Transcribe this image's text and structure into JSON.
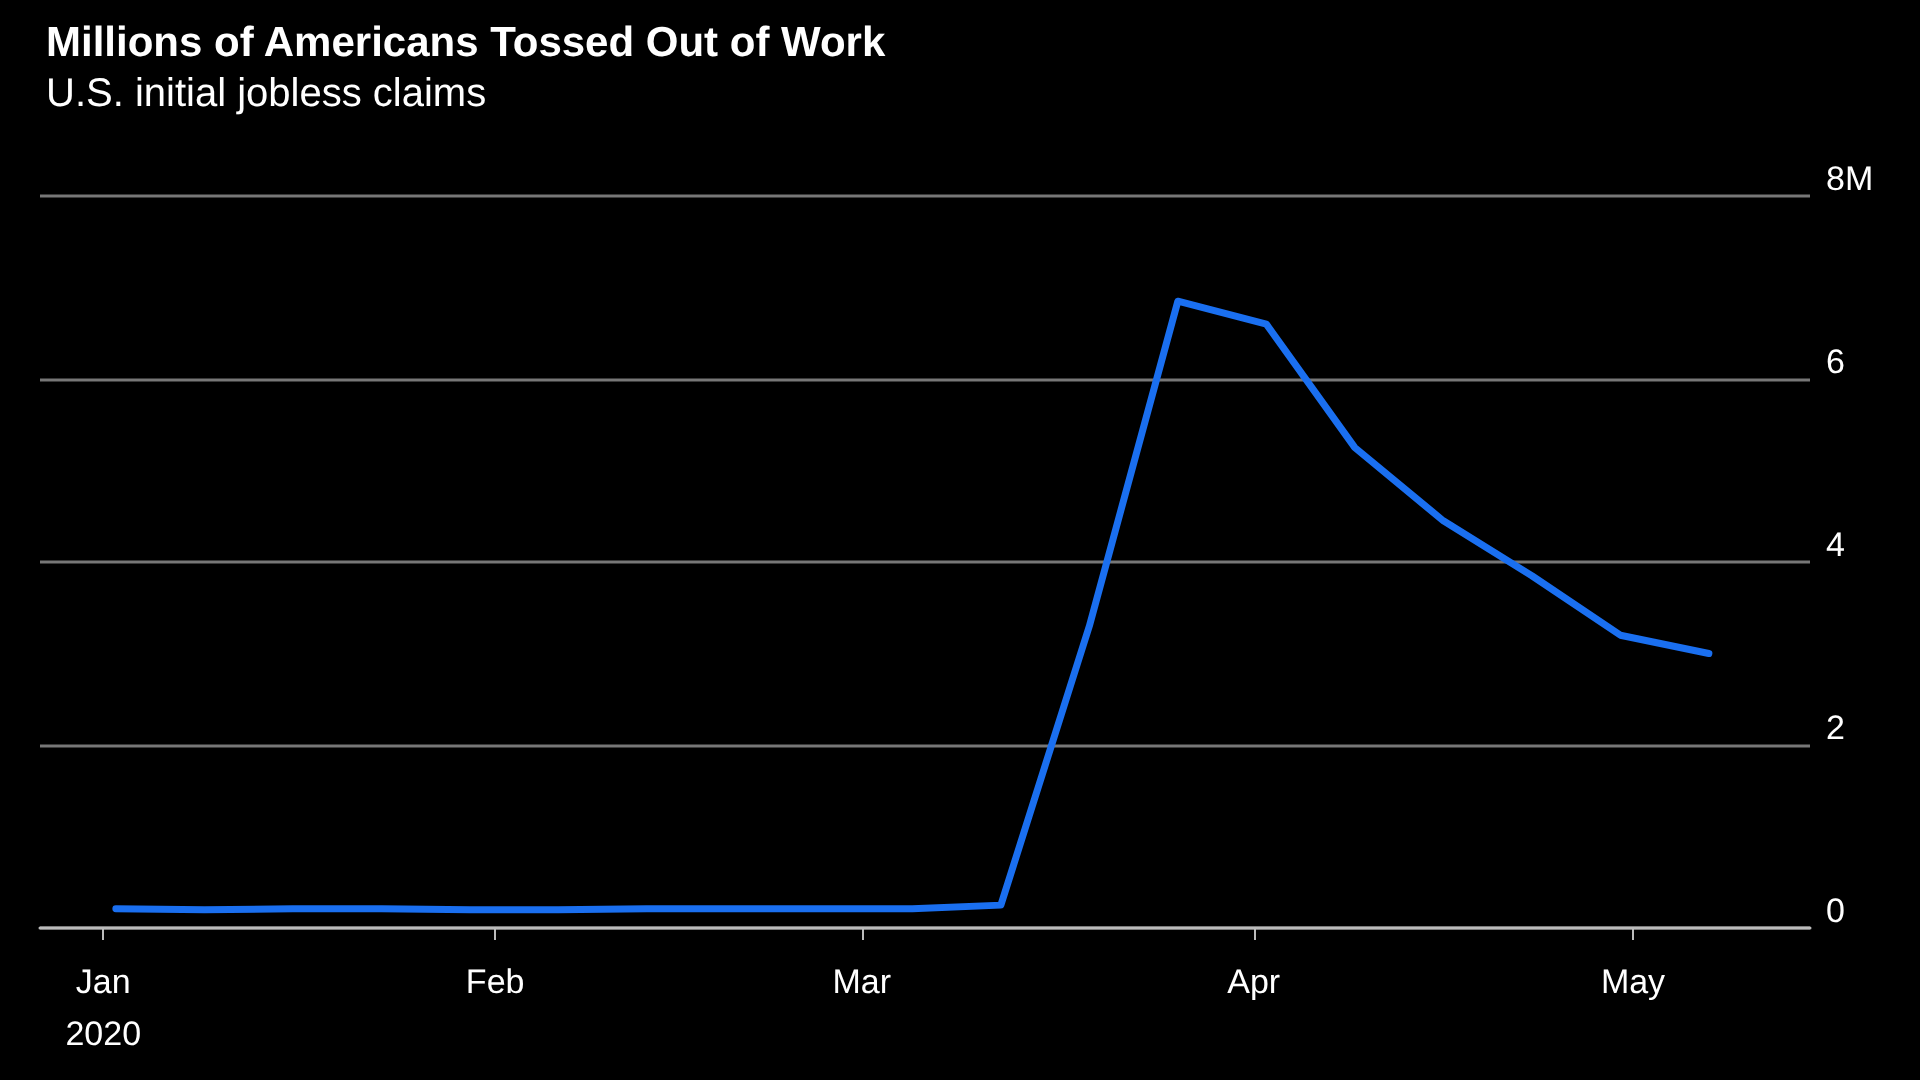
{
  "chart_data": {
    "type": "line",
    "title": "Millions of Americans Tossed Out of Work",
    "subtitle": "U.S. initial jobless claims",
    "x": [
      "2020-01-02",
      "2020-01-09",
      "2020-01-16",
      "2020-01-23",
      "2020-01-30",
      "2020-02-06",
      "2020-02-13",
      "2020-02-20",
      "2020-02-27",
      "2020-03-05",
      "2020-03-12",
      "2020-03-19",
      "2020-03-26",
      "2020-04-02",
      "2020-04-09",
      "2020-04-16",
      "2020-04-23",
      "2020-04-30",
      "2020-05-07"
    ],
    "series": [
      {
        "color": "#1a6ff0",
        "values": [
          0.21,
          0.2,
          0.21,
          0.21,
          0.2,
          0.2,
          0.21,
          0.21,
          0.21,
          0.21,
          0.25,
          3.3,
          6.85,
          6.6,
          5.25,
          4.45,
          3.85,
          3.2,
          3.0
        ]
      }
    ],
    "xlim": [
      "2019-12-27",
      "2020-05-15"
    ],
    "xticks": [
      {
        "value": "2020-01-01",
        "label": "Jan\n2020"
      },
      {
        "value": "2020-02-01",
        "label": "Feb"
      },
      {
        "value": "2020-03-01",
        "label": "Mar"
      },
      {
        "value": "2020-04-01",
        "label": "Apr"
      },
      {
        "value": "2020-05-01",
        "label": "May"
      }
    ],
    "ylim": [
      0,
      8
    ],
    "yticks": [
      0,
      2,
      4,
      6,
      {
        "value": 8,
        "label": "8M"
      }
    ],
    "grid": "y",
    "marker": "none",
    "line_style": "solid"
  }
}
